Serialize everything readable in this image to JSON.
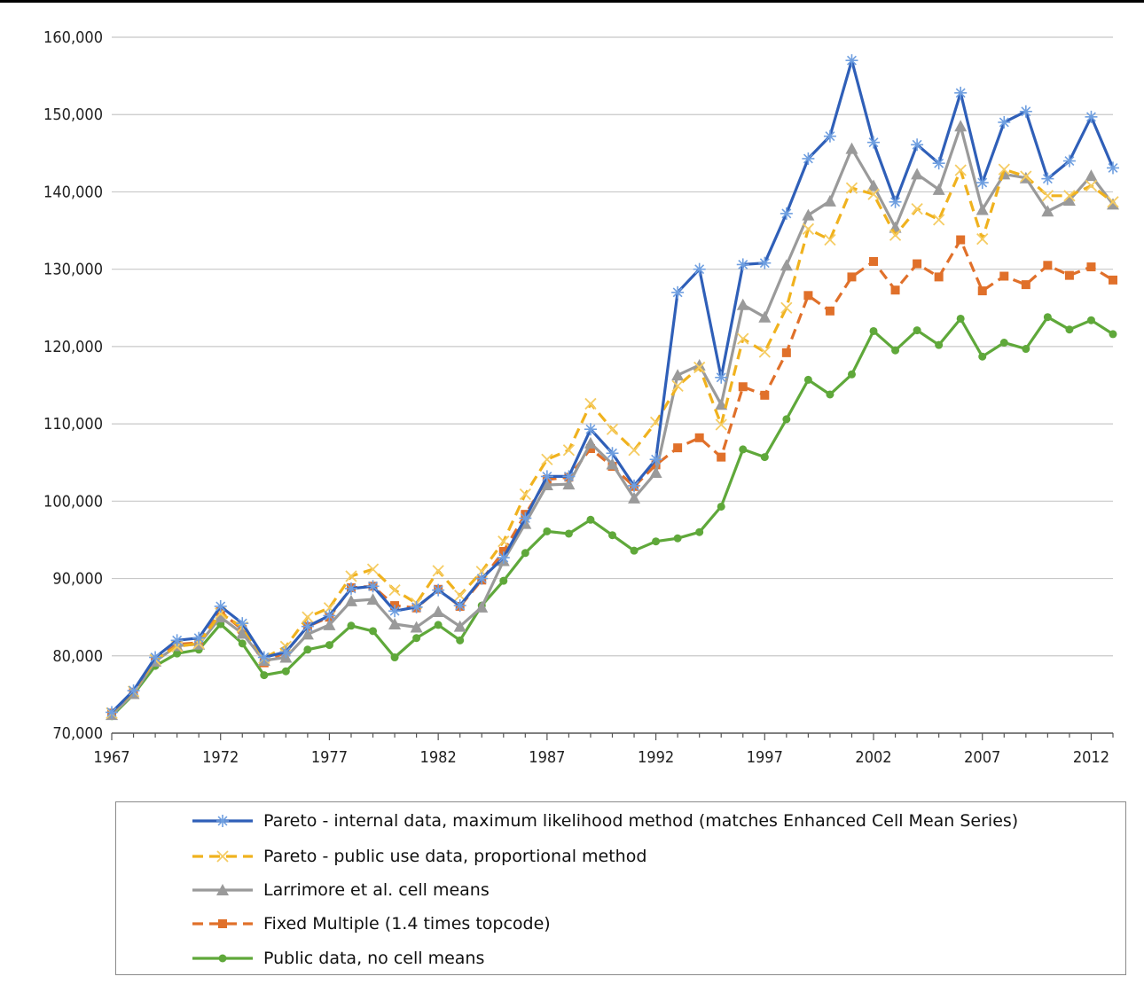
{
  "chart_data": {
    "type": "line",
    "title": "",
    "xlabel": "",
    "ylabel": "",
    "xlim": [
      1967,
      2013
    ],
    "ylim": [
      70000,
      160000
    ],
    "x_ticks": [
      1967,
      1972,
      1977,
      1982,
      1987,
      1992,
      1997,
      2002,
      2007,
      2012
    ],
    "y_ticks": [
      70000,
      80000,
      90000,
      100000,
      110000,
      120000,
      130000,
      140000,
      150000,
      160000
    ],
    "y_tick_labels": [
      "70,000",
      "80,000",
      "90,000",
      "100,000",
      "110,000",
      "120,000",
      "130,000",
      "140,000",
      "150,000",
      "160,000"
    ],
    "grid": "horizontal",
    "legend_position": "bottom",
    "x": [
      1967,
      1968,
      1969,
      1970,
      1971,
      1972,
      1973,
      1974,
      1975,
      1976,
      1977,
      1978,
      1979,
      1980,
      1981,
      1982,
      1983,
      1984,
      1985,
      1986,
      1987,
      1988,
      1989,
      1990,
      1991,
      1992,
      1993,
      1994,
      1995,
      1996,
      1997,
      1998,
      1999,
      2000,
      2001,
      2002,
      2003,
      2004,
      2005,
      2006,
      2007,
      2008,
      2009,
      2010,
      2011,
      2012,
      2013
    ],
    "series": [
      {
        "name": "Pareto - internal data, maximum likelihood method (matches Enhanced Cell Mean Series)",
        "color": "#2f5fb8",
        "line_style": "solid",
        "marker": "asterisk",
        "values": [
          72700,
          75500,
          79800,
          82000,
          82300,
          86400,
          84200,
          79800,
          80500,
          83800,
          85200,
          88700,
          89000,
          85800,
          86300,
          88500,
          86500,
          90000,
          92700,
          97800,
          103200,
          103200,
          109300,
          106200,
          102000,
          105400,
          127000,
          130000,
          116000,
          130600,
          130800,
          137200,
          144300,
          147200,
          157000,
          146400,
          138700,
          146100,
          143700,
          152800,
          141200,
          149000,
          150400,
          141700,
          144000,
          149700,
          143100
        ]
      },
      {
        "name": "Pareto - public use data, proportional method",
        "color": "#f0b21e",
        "line_style": "dashed",
        "marker": "x",
        "values": [
          72600,
          75400,
          79500,
          81200,
          81600,
          85500,
          83700,
          79700,
          81200,
          85000,
          86200,
          90300,
          91200,
          88500,
          86800,
          91000,
          87800,
          90900,
          94800,
          100900,
          105400,
          106600,
          112600,
          109300,
          106600,
          110200,
          114900,
          117300,
          109900,
          121000,
          119300,
          125000,
          135200,
          133800,
          140500,
          139700,
          134400,
          137800,
          136400,
          142800,
          133900,
          142900,
          142000,
          139500,
          139500,
          140800,
          138700
        ]
      },
      {
        "name": "Larrimore et al. cell means",
        "color": "#9a9a9a",
        "line_style": "solid",
        "marker": "triangle",
        "values": [
          72400,
          75100,
          79300,
          81300,
          81500,
          85000,
          82900,
          79400,
          79800,
          82800,
          84000,
          87100,
          87300,
          84100,
          83700,
          85700,
          83800,
          86300,
          92300,
          97100,
          102100,
          102200,
          107500,
          104800,
          100400,
          103700,
          116300,
          117600,
          112500,
          125400,
          123800,
          130500,
          137000,
          138800,
          145600,
          140800,
          135400,
          142300,
          140300,
          148500,
          137700,
          142300,
          141800,
          137500,
          138900,
          142100,
          138400
        ]
      },
      {
        "name": "Fixed Multiple (1.4 times topcode)",
        "color": "#e0702a",
        "line_style": "dashed",
        "marker": "square",
        "values": [
          72600,
          75300,
          79400,
          81500,
          81700,
          85700,
          83400,
          79100,
          80500,
          83800,
          85000,
          88800,
          89000,
          86500,
          86200,
          88600,
          86400,
          89800,
          93500,
          98300,
          102800,
          103100,
          106800,
          104500,
          101900,
          104700,
          106900,
          108200,
          105700,
          114800,
          113700,
          119200,
          126600,
          124600,
          129000,
          131000,
          127300,
          130700,
          129000,
          133800,
          127200,
          129100,
          128000,
          130500,
          129200,
          130300,
          128600
        ]
      },
      {
        "name": "Public data, no cell means",
        "color": "#5fa83a",
        "line_style": "solid",
        "marker": "circle",
        "values": [
          72200,
          75000,
          78700,
          80300,
          80800,
          84100,
          81600,
          77500,
          78000,
          80800,
          81400,
          83900,
          83200,
          79800,
          82300,
          84000,
          82000,
          86500,
          89700,
          93300,
          96100,
          95800,
          97600,
          95600,
          93600,
          94800,
          95200,
          96000,
          99300,
          106700,
          105700,
          110600,
          115700,
          113800,
          116400,
          122000,
          119500,
          122100,
          120200,
          123600,
          118700,
          120500,
          119700,
          123800,
          122200,
          123400,
          121600
        ]
      }
    ]
  }
}
